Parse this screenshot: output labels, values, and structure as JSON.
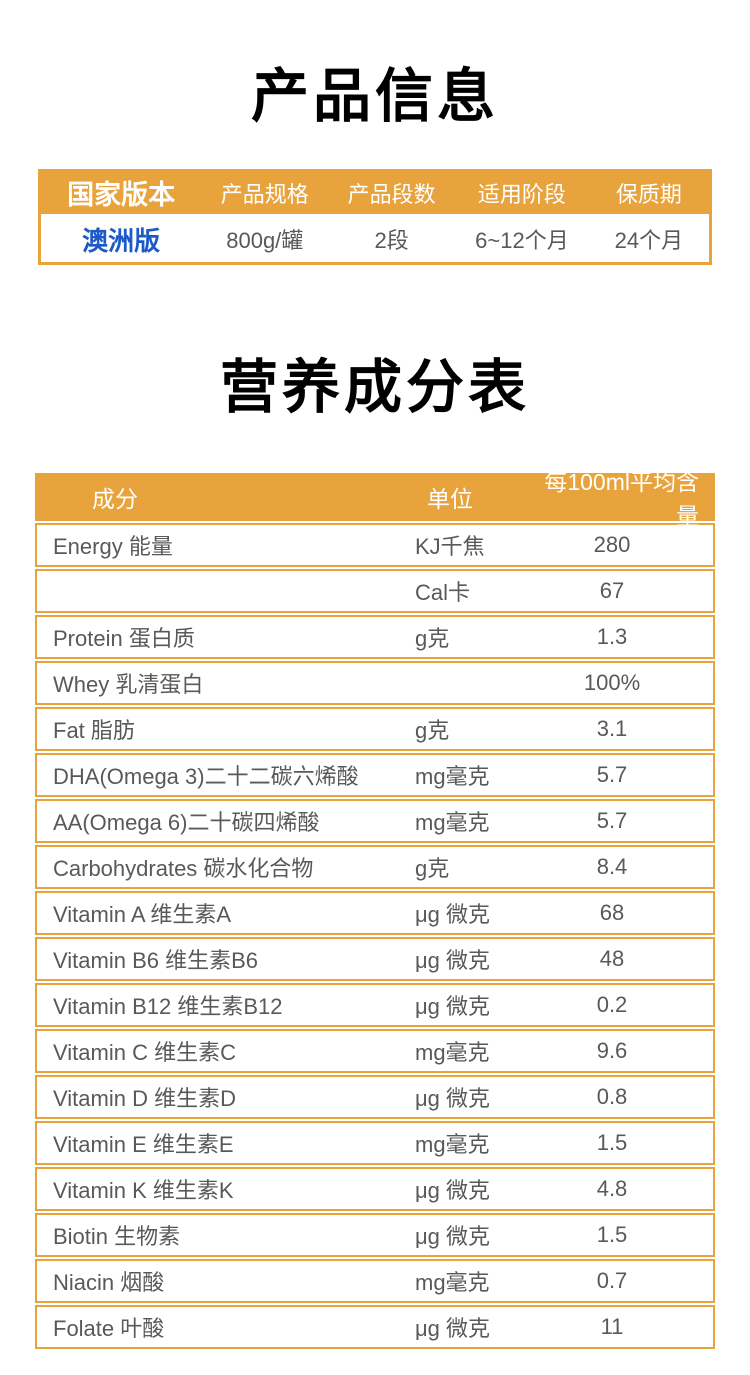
{
  "colors": {
    "accent_orange": "#E8A33C",
    "header_text": "#FFFFFF",
    "body_text": "#595959",
    "version_blue": "#1B5AC8",
    "title_black": "#000000"
  },
  "titles": {
    "product_info": "产品信息",
    "nutrition": "营养成分表"
  },
  "product_table": {
    "columns": [
      "国家版本",
      "产品规格",
      "产品段数",
      "适用阶段",
      "保质期"
    ],
    "row": {
      "version": "澳洲版",
      "spec": "800g/罐",
      "stage": "2段",
      "age_range": "6~12个月",
      "shelf_life": "24个月"
    }
  },
  "nutrition_table": {
    "columns": [
      "成分",
      "单位",
      "每100ml平均含量"
    ],
    "rows": [
      {
        "name": "Energy 能量",
        "unit": "KJ千焦",
        "value": "280"
      },
      {
        "name": "",
        "unit": "Cal卡",
        "value": "67"
      },
      {
        "name": "Protein 蛋白质",
        "unit": "g克",
        "value": "1.3"
      },
      {
        "name": "Whey 乳清蛋白",
        "unit": "",
        "value": "100%"
      },
      {
        "name": "Fat 脂肪",
        "unit": "g克",
        "value": "3.1"
      },
      {
        "name": "DHA(Omega 3)二十二碳六烯酸",
        "unit": "mg毫克",
        "value": "5.7"
      },
      {
        "name": "AA(Omega 6)二十碳四烯酸",
        "unit": "mg毫克",
        "value": "5.7"
      },
      {
        "name": "Carbohydrates 碳水化合物",
        "unit": "g克",
        "value": "8.4"
      },
      {
        "name": "Vitamin A 维生素A",
        "unit": "μg 微克",
        "value": "68"
      },
      {
        "name": "Vitamin B6 维生素B6",
        "unit": "μg 微克",
        "value": "48"
      },
      {
        "name": "Vitamin B12 维生素B12",
        "unit": "μg 微克",
        "value": "0.2"
      },
      {
        "name": "Vitamin C 维生素C",
        "unit": "mg毫克",
        "value": "9.6"
      },
      {
        "name": "Vitamin D 维生素D",
        "unit": "μg 微克",
        "value": "0.8"
      },
      {
        "name": "Vitamin E 维生素E",
        "unit": "mg毫克",
        "value": "1.5"
      },
      {
        "name": "Vitamin K 维生素K",
        "unit": "μg 微克",
        "value": "4.8"
      },
      {
        "name": "Biotin 生物素",
        "unit": "μg 微克",
        "value": "1.5"
      },
      {
        "name": "Niacin 烟酸",
        "unit": "mg毫克",
        "value": "0.7"
      },
      {
        "name": "Folate 叶酸",
        "unit": "μg 微克",
        "value": "11"
      }
    ]
  }
}
